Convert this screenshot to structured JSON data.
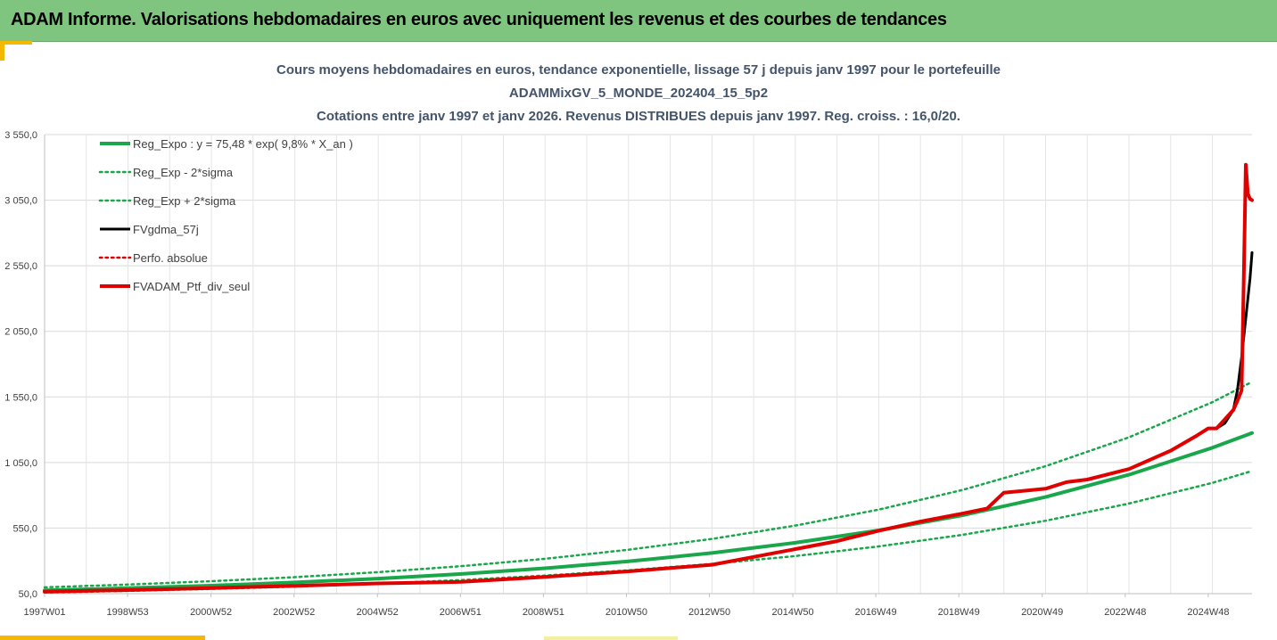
{
  "header": {
    "title": "ADAM Informe. Valorisations hebdomadaires en euros avec uniquement les revenus et des courbes de tendances"
  },
  "colors": {
    "header_bg": "#7fc47f",
    "accent": "#f5b800",
    "reg_expo": "#1aa64a",
    "black_line": "#000000",
    "red_line": "#e00000",
    "title_text": "#44546a"
  },
  "chart_data": {
    "type": "line",
    "title": [
      "Cours moyens hebdomadaires  en euros, tendance exponentielle, lissage 57 j depuis janv 1997 pour le portefeuille",
      "ADAMMixGV_5_MONDE_202404_15_5p2",
      "Cotations entre janv 1997 et janv 2026. Revenus DISTRIBUES depuis janv 1997. Reg. croiss. : 16,0/20."
    ],
    "xlabel": "",
    "ylabel": "",
    "x_range": [
      1997.0,
      2025.95
    ],
    "ylim": [
      50,
      3550
    ],
    "y_ticks": [
      "50,0",
      "550,0",
      "1 050,0",
      "1 550,0",
      "2 050,0",
      "2 550,0",
      "3 050,0",
      "3 550,0"
    ],
    "x_ticks": [
      {
        "label": "1997W01",
        "t": 1997.0
      },
      {
        "label": "1998W53",
        "t": 1998.99
      },
      {
        "label": "2000W52",
        "t": 2000.99
      },
      {
        "label": "2002W52",
        "t": 2002.98
      },
      {
        "label": "2004W52",
        "t": 2004.98
      },
      {
        "label": "2006W51",
        "t": 2006.97
      },
      {
        "label": "2008W51",
        "t": 2008.96
      },
      {
        "label": "2010W50",
        "t": 2010.95
      },
      {
        "label": "2012W50",
        "t": 2012.94
      },
      {
        "label": "2014W50",
        "t": 2014.94
      },
      {
        "label": "2016W49",
        "t": 2016.93
      },
      {
        "label": "2018W49",
        "t": 2018.92
      },
      {
        "label": "2020W49",
        "t": 2020.92
      },
      {
        "label": "2022W48",
        "t": 2022.91
      },
      {
        "label": "2024W48",
        "t": 2024.9
      }
    ],
    "grid": true,
    "legend_position": "top-left",
    "series": [
      {
        "name": "Reg_Expo : y = 75,48 * exp( 9,8% *  X_an )",
        "style": "solid-thick",
        "color": "#1aa64a",
        "x": [
          1997,
          1999,
          2001,
          2003,
          2005,
          2007,
          2009,
          2011,
          2013,
          2015,
          2017,
          2019,
          2021,
          2023,
          2025,
          2025.95
        ],
        "values": [
          75.5,
          91.8,
          111.5,
          135.6,
          164.8,
          200.4,
          243.6,
          296.2,
          360.1,
          437.8,
          532.2,
          647.0,
          786.6,
          956.3,
          1162.6,
          1275
        ]
      },
      {
        "name": "Reg_Exp - 2*sigma",
        "style": "dotted",
        "color": "#1aa64a",
        "x": [
          1997,
          1999,
          2001,
          2003,
          2005,
          2007,
          2009,
          2011,
          2013,
          2015,
          2017,
          2019,
          2021,
          2023,
          2025,
          2025.95
        ],
        "values": [
          58,
          71,
          86,
          104,
          127,
          154,
          188,
          228,
          277,
          337,
          410,
          498,
          606,
          737,
          895,
          985
        ]
      },
      {
        "name": "Reg_Exp + 2*sigma",
        "style": "dotted",
        "color": "#1aa64a",
        "x": [
          1997,
          1999,
          2001,
          2003,
          2005,
          2007,
          2009,
          2011,
          2013,
          2015,
          2017,
          2019,
          2021,
          2023,
          2025,
          2025.95
        ],
        "values": [
          98,
          119,
          145,
          176,
          214,
          260,
          316,
          385,
          467,
          569,
          691,
          840,
          1022,
          1242,
          1510,
          1665
        ]
      },
      {
        "name": "FVgdma_57j",
        "style": "solid",
        "color": "#000000",
        "x": [
          1997,
          1999,
          2001,
          2003,
          2005,
          2007,
          2009,
          2011,
          2013,
          2014,
          2015,
          2016,
          2017,
          2018,
          2019,
          2019.6,
          2020,
          2021,
          2021.5,
          2022,
          2023,
          2024,
          2024.6,
          2024.9,
          2025.1,
          2025.3,
          2025.5,
          2025.6,
          2025.7,
          2025.8,
          2025.9,
          2025.95
        ],
        "values": [
          65,
          77,
          93,
          110,
          128,
          140,
          178,
          220,
          270,
          330,
          390,
          450,
          530,
          600,
          660,
          700,
          820,
          850,
          900,
          920,
          1000,
          1140,
          1250,
          1310,
          1310,
          1350,
          1450,
          1600,
          1850,
          2150,
          2450,
          2650
        ]
      },
      {
        "name": "Perfo. absolue",
        "style": "dotted",
        "color": "#e00000",
        "x": [
          1997,
          1999,
          2001,
          2003,
          2005,
          2007,
          2009,
          2011,
          2013,
          2014,
          2015,
          2016,
          2017,
          2018,
          2019,
          2019.6,
          2020,
          2021,
          2021.5,
          2022,
          2023,
          2024,
          2024.6,
          2024.9,
          2025.1,
          2025.3,
          2025.5,
          2025.6,
          2025.7,
          2025.75,
          2025.8,
          2025.85,
          2025.9,
          2025.95
        ],
        "values": [
          65,
          77,
          93,
          110,
          128,
          140,
          178,
          220,
          270,
          330,
          390,
          450,
          530,
          600,
          660,
          700,
          820,
          850,
          900,
          920,
          1000,
          1140,
          1250,
          1310,
          1310,
          1380,
          1450,
          1520,
          1600,
          2400,
          3320,
          3100,
          3060,
          3050
        ]
      },
      {
        "name": "FVADAM_Ptf_div_seul",
        "style": "solid-thick",
        "color": "#e00000",
        "x": [
          1997,
          1999,
          2001,
          2003,
          2005,
          2007,
          2009,
          2011,
          2013,
          2014,
          2015,
          2016,
          2017,
          2018,
          2019,
          2019.6,
          2020,
          2021,
          2021.5,
          2022,
          2023,
          2024,
          2024.6,
          2024.9,
          2025.1,
          2025.3,
          2025.5,
          2025.6,
          2025.7,
          2025.75,
          2025.8,
          2025.85,
          2025.9,
          2025.95
        ],
        "values": [
          65,
          77,
          93,
          110,
          128,
          140,
          178,
          220,
          270,
          330,
          390,
          450,
          530,
          600,
          660,
          700,
          820,
          850,
          900,
          920,
          1000,
          1140,
          1250,
          1310,
          1310,
          1380,
          1450,
          1520,
          1600,
          2400,
          3320,
          3100,
          3060,
          3050
        ]
      }
    ]
  }
}
